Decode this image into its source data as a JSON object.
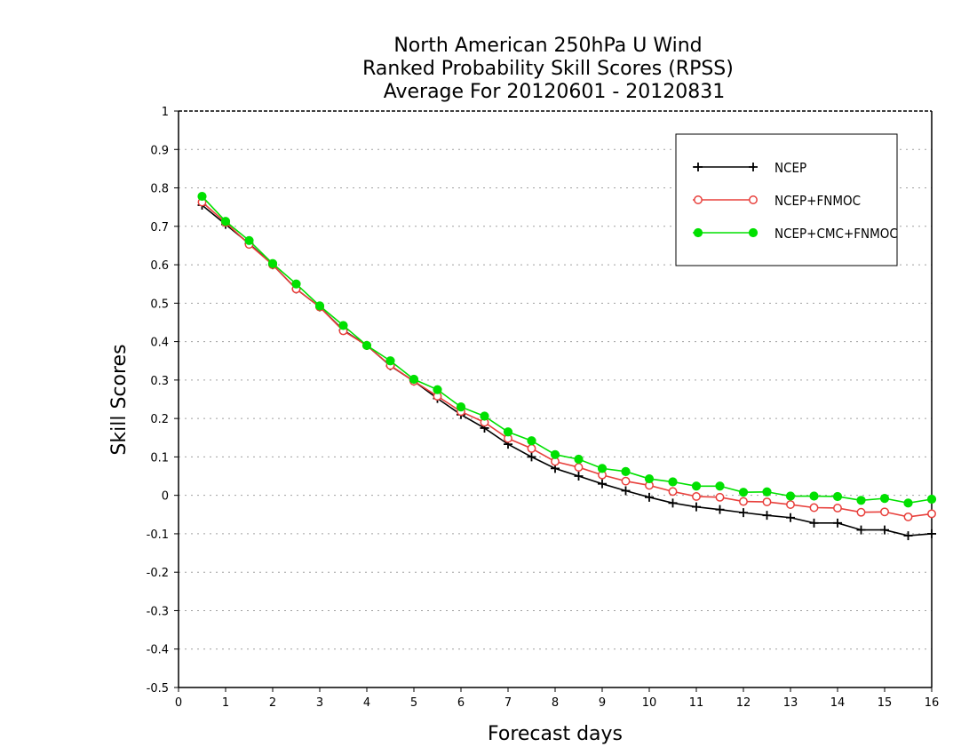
{
  "chart_data": {
    "type": "line",
    "title": [
      "North American 250hPa U Wind",
      "Ranked Probability Skill Scores (RPSS)",
      "Average For 20120601 - 20120831"
    ],
    "xlabel": "Forecast days",
    "ylabel": "Skill Scores",
    "xlim": [
      0,
      16
    ],
    "ylim": [
      -0.5,
      1
    ],
    "xticks": [
      0,
      1,
      2,
      3,
      4,
      5,
      6,
      7,
      8,
      9,
      10,
      11,
      12,
      13,
      14,
      15,
      16
    ],
    "xtick_labels": [
      "0",
      "1",
      "2",
      "3",
      "4",
      "5",
      "6",
      "7",
      "8",
      "9",
      "10",
      "11",
      "12",
      "13",
      "14",
      "15",
      "16"
    ],
    "yticks": [
      -0.5,
      -0.4,
      -0.3,
      -0.2,
      -0.1,
      0,
      0.1,
      0.2,
      0.3,
      0.4,
      0.5,
      0.6,
      0.7,
      0.8,
      0.9,
      1
    ],
    "ytick_labels": [
      "-0.5",
      "-0.4",
      "-0.3",
      "-0.2",
      "-0.1",
      "0",
      "0.1",
      "0.2",
      "0.3",
      "0.4",
      "0.5",
      "0.6",
      "0.7",
      "0.8",
      "0.9",
      "1"
    ],
    "grid": "horizontal dotted",
    "legend_position": "top-right",
    "x": [
      0.5,
      1,
      1.5,
      2,
      2.5,
      3,
      3.5,
      4,
      4.5,
      5,
      5.5,
      6,
      6.5,
      7,
      7.5,
      8,
      8.5,
      9,
      9.5,
      10,
      10.5,
      11,
      11.5,
      12,
      12.5,
      13,
      13.5,
      14,
      14.5,
      15,
      15.5,
      16
    ],
    "series": [
      {
        "name": "NCEP",
        "color": "#000000",
        "marker": "plus",
        "values": [
          0.755,
          0.705,
          0.655,
          0.6,
          0.537,
          0.49,
          0.43,
          0.39,
          0.337,
          0.297,
          0.252,
          0.21,
          0.175,
          0.133,
          0.1,
          0.07,
          0.05,
          0.03,
          0.012,
          -0.005,
          -0.02,
          -0.03,
          -0.037,
          -0.045,
          -0.052,
          -0.058,
          -0.072,
          -0.072,
          -0.09,
          -0.09,
          -0.105,
          -0.1
        ]
      },
      {
        "name": "NCEP+FNMOC",
        "color": "#e8403c",
        "marker": "open-circle",
        "values": [
          0.763,
          0.71,
          0.653,
          0.6,
          0.537,
          0.49,
          0.428,
          0.39,
          0.338,
          0.297,
          0.258,
          0.218,
          0.19,
          0.148,
          0.122,
          0.088,
          0.073,
          0.053,
          0.037,
          0.026,
          0.01,
          -0.003,
          -0.005,
          -0.016,
          -0.017,
          -0.024,
          -0.032,
          -0.033,
          -0.044,
          -0.043,
          -0.056,
          -0.048
        ]
      },
      {
        "name": "NCEP+CMC+FNMOC",
        "color": "#00e000",
        "marker": "filled-circle",
        "values": [
          0.778,
          0.713,
          0.663,
          0.603,
          0.55,
          0.493,
          0.442,
          0.39,
          0.35,
          0.302,
          0.275,
          0.23,
          0.206,
          0.165,
          0.142,
          0.106,
          0.094,
          0.07,
          0.062,
          0.043,
          0.035,
          0.024,
          0.024,
          0.008,
          0.009,
          -0.002,
          -0.002,
          -0.003,
          -0.013,
          -0.008,
          -0.02,
          -0.01
        ]
      }
    ]
  }
}
